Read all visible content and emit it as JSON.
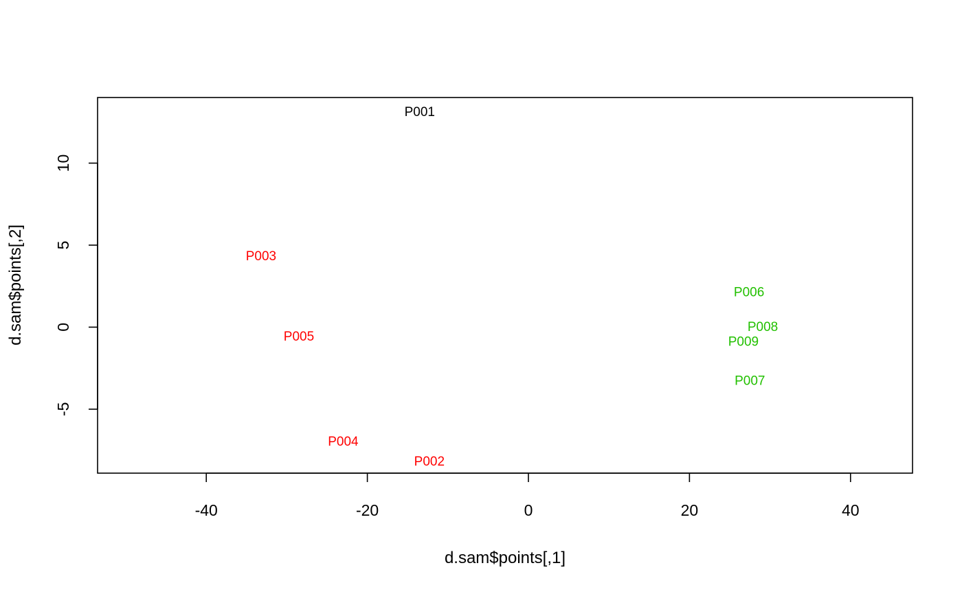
{
  "chart_data": {
    "type": "scatter",
    "title": "",
    "xlabel": "d.sam$points[,1]",
    "ylabel": "d.sam$points[,2]",
    "xlim": [
      -53.5,
      47.7
    ],
    "ylim": [
      -8.9,
      14.0
    ],
    "x_ticks": [
      -40,
      -20,
      0,
      20,
      40
    ],
    "x_tick_labels": [
      "-40",
      "-20",
      "0",
      "20",
      "40"
    ],
    "y_ticks": [
      -5,
      0,
      5,
      10
    ],
    "y_tick_labels": [
      "-5",
      "0",
      "5",
      "10"
    ],
    "grid": false,
    "legend": "none",
    "colors": {
      "black": "#000000",
      "red": "#ff0000",
      "green": "#22c000"
    },
    "points": [
      {
        "label": "P001",
        "x": -13.5,
        "y": 13.1,
        "color": "#000000"
      },
      {
        "label": "P002",
        "x": -12.3,
        "y": -8.2,
        "color": "#ff0000"
      },
      {
        "label": "P003",
        "x": -33.2,
        "y": 4.3,
        "color": "#ff0000"
      },
      {
        "label": "P004",
        "x": -23.0,
        "y": -7.0,
        "color": "#ff0000"
      },
      {
        "label": "P005",
        "x": -28.5,
        "y": -0.6,
        "color": "#ff0000"
      },
      {
        "label": "P006",
        "x": 27.4,
        "y": 2.1,
        "color": "#22c000"
      },
      {
        "label": "P007",
        "x": 27.5,
        "y": -3.3,
        "color": "#22c000"
      },
      {
        "label": "P008",
        "x": 29.1,
        "y": 0.0,
        "color": "#22c000"
      },
      {
        "label": "P009",
        "x": 26.7,
        "y": -0.9,
        "color": "#22c000"
      }
    ]
  }
}
